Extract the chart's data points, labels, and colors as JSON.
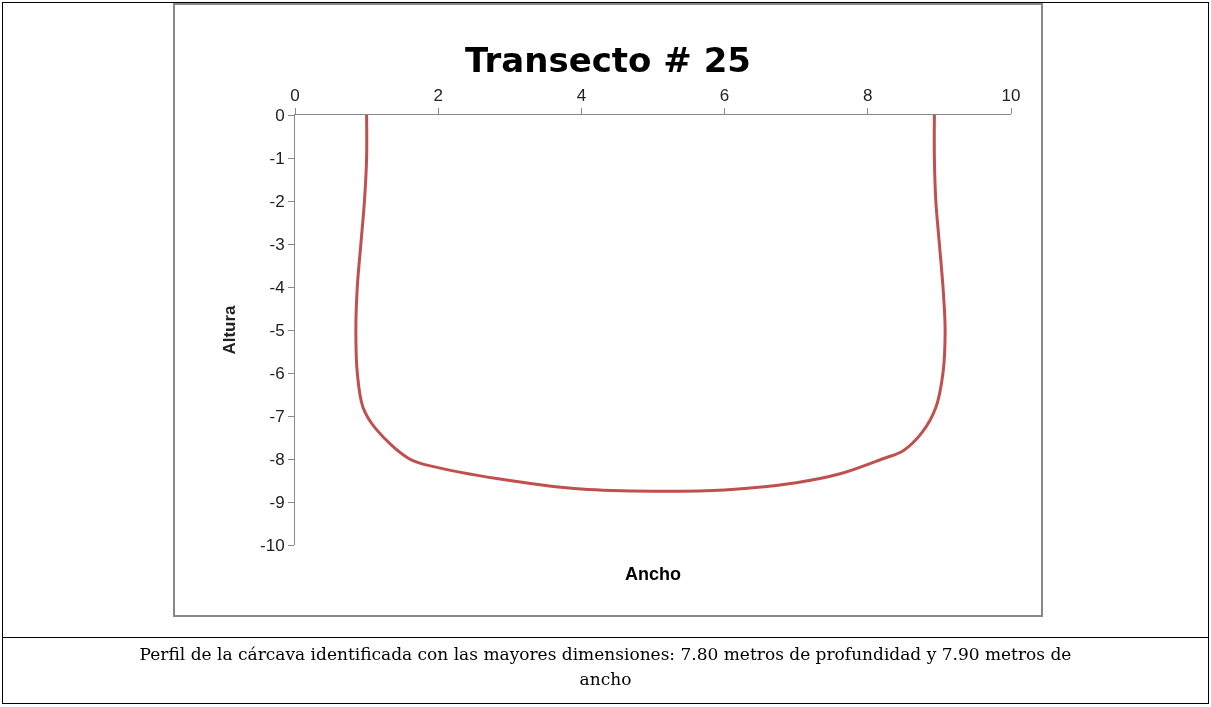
{
  "chart_data": {
    "type": "line",
    "title": "Transecto # 25",
    "xlabel": "Ancho",
    "ylabel": "Altura",
    "annotations": [
      "Perfil de la cárcava identificada con las mayores dimensiones: 7.80 metros de profundidad y 7.90 metros de ancho"
    ],
    "series": [
      {
        "color": "#c0504d",
        "x": [
          1.0,
          1.0,
          0.97,
          0.92,
          0.87,
          0.85,
          0.87,
          0.95,
          1.13,
          1.6,
          2,
          3,
          4,
          5,
          6,
          7,
          7.6,
          8.2,
          8.5,
          8.75,
          8.95,
          9.05,
          9.08,
          9.05,
          9.0,
          8.95,
          8.93,
          8.93
        ],
        "values": [
          0,
          -1,
          -2,
          -3,
          -4,
          -5,
          -6,
          -6.8,
          -7.3,
          -8,
          -8.2,
          -8.5,
          -8.7,
          -8.75,
          -8.72,
          -8.55,
          -8.35,
          -8,
          -7.8,
          -7.4,
          -6.8,
          -6,
          -5,
          -4,
          -3,
          -2,
          -1,
          0
        ]
      }
    ],
    "xlim": [
      0,
      10
    ],
    "xticks": [
      0,
      2,
      4,
      6,
      8,
      10
    ],
    "ylim": [
      -10,
      0
    ],
    "yticks": [
      0,
      -1,
      -2,
      -3,
      -4,
      -5,
      -6,
      -7,
      -8,
      -9,
      -10
    ],
    "grid": false,
    "marker": "none",
    "line_style": "solid"
  }
}
